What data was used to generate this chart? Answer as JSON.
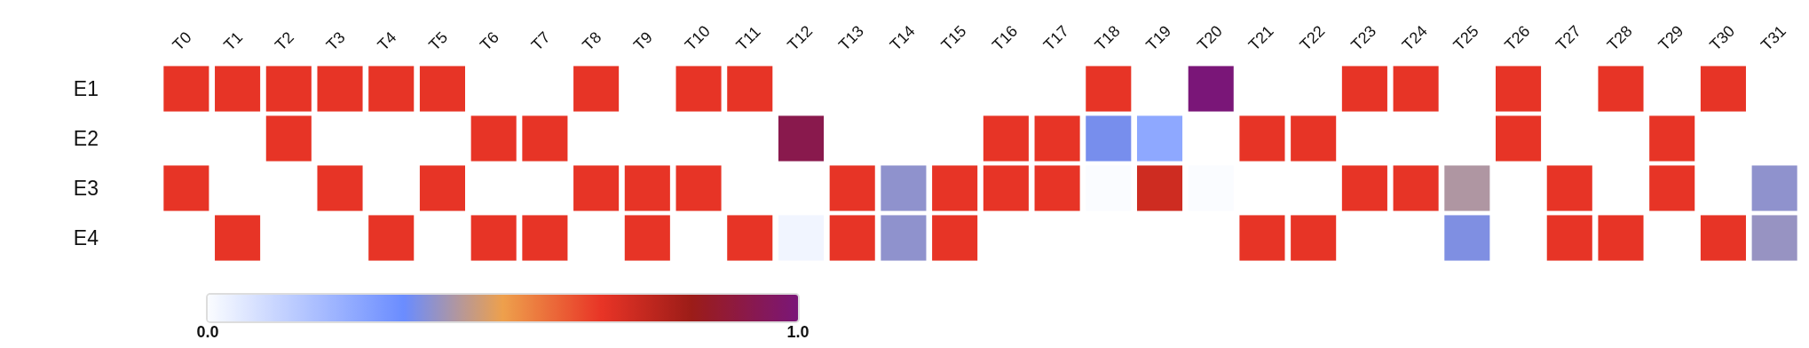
{
  "chart_data": {
    "type": "heatmap",
    "categories": [
      "T0",
      "T1",
      "T2",
      "T3",
      "T4",
      "T5",
      "T6",
      "T7",
      "T8",
      "T9",
      "T10",
      "T11",
      "T12",
      "T13",
      "T14",
      "T15",
      "T16",
      "T17",
      "T18",
      "T19",
      "T20",
      "T21",
      "T22",
      "T23",
      "T24",
      "T25",
      "T26",
      "T27",
      "T28",
      "T29",
      "T30",
      "T31"
    ],
    "y_categories": [
      "E1",
      "E2",
      "E3",
      "E4"
    ],
    "cells": [
      [
        0.67,
        0.67,
        0.67,
        0.67,
        0.67,
        0.67,
        null,
        null,
        0.67,
        null,
        0.67,
        0.67,
        null,
        null,
        null,
        null,
        null,
        null,
        0.67,
        null,
        1.0,
        null,
        null,
        0.67,
        0.67,
        null,
        0.67,
        null,
        0.67,
        null,
        0.67,
        null
      ],
      [
        null,
        null,
        0.67,
        null,
        null,
        null,
        0.67,
        0.67,
        null,
        null,
        null,
        null,
        0.92,
        null,
        null,
        null,
        0.67,
        0.67,
        0.35,
        0.25,
        null,
        0.67,
        0.67,
        null,
        null,
        null,
        0.67,
        null,
        null,
        0.67,
        null,
        null
      ],
      [
        0.67,
        null,
        null,
        0.67,
        null,
        0.67,
        null,
        null,
        0.67,
        0.67,
        0.67,
        null,
        null,
        0.67,
        0.38,
        0.67,
        0.67,
        0.67,
        0.0,
        0.72,
        0.0,
        null,
        null,
        0.67,
        0.67,
        0.42,
        null,
        0.67,
        null,
        0.67,
        null,
        0.38
      ],
      [
        null,
        0.67,
        null,
        null,
        0.67,
        null,
        0.67,
        0.67,
        null,
        0.67,
        null,
        0.67,
        0.02,
        0.67,
        0.38,
        0.67,
        null,
        null,
        null,
        null,
        null,
        0.67,
        0.67,
        null,
        null,
        0.36,
        null,
        0.67,
        0.67,
        null,
        0.67,
        0.39
      ]
    ],
    "clim": [
      0,
      1
    ],
    "cticks": [
      {
        "value": 0,
        "label": "0.0"
      },
      {
        "value": 1,
        "label": "1.0"
      }
    ]
  }
}
